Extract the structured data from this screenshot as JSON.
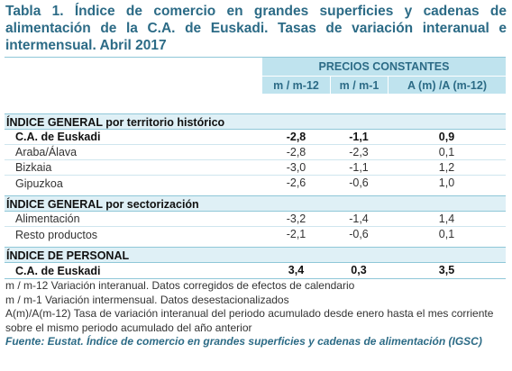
{
  "title": "Tabla 1. Índice de comercio en grandes superficies y cadenas de alimentación de la C.A. de Euskadi. Tasas de variación interanual e intermensual. Abril 2017",
  "header": {
    "group": "PRECIOS CONSTANTES",
    "columns": [
      "m / m-12",
      "m / m-1",
      "A (m) /A (m-12)"
    ]
  },
  "sections": [
    {
      "title": "ÍNDICE GENERAL por territorio histórico",
      "rows": [
        {
          "label": "C.A. de Euskadi",
          "values": [
            "-2,8",
            "-1,1",
            "0,9"
          ],
          "bold": true
        },
        {
          "label": "Araba/Álava",
          "values": [
            "-2,8",
            "-2,3",
            "0,1"
          ],
          "bold": false
        },
        {
          "label": "Bizkaia",
          "values": [
            "-3,0",
            "-1,1",
            "1,2"
          ],
          "bold": false
        },
        {
          "label": "Gipuzkoa",
          "values": [
            "-2,6",
            "-0,6",
            "1,0"
          ],
          "bold": false
        }
      ]
    },
    {
      "title": "ÍNDICE GENERAL por sectorización",
      "rows": [
        {
          "label": "Alimentación",
          "values": [
            "-3,2",
            "-1,4",
            "1,4"
          ],
          "bold": false
        },
        {
          "label": "Resto productos",
          "values": [
            "-2,1",
            "-0,6",
            "0,1"
          ],
          "bold": false
        }
      ]
    },
    {
      "title": "ÍNDICE DE PERSONAL",
      "rows": [
        {
          "label": "C.A. de Euskadi",
          "values": [
            "3,4",
            "0,3",
            "3,5"
          ],
          "bold": true
        }
      ]
    }
  ],
  "notes": [
    "m / m-12 Variación interanual. Datos corregidos de efectos de calendario",
    "m / m-1 Variación intermensual. Datos desestacionalizados",
    "A(m)/A(m-12) Tasa de variación interanual del periodo acumulado desde enero hasta el mes corriente sobre el mismo periodo acumulado del año anterior"
  ],
  "source": "Fuente: Eustat. Índice de comercio en grandes superficies y cadenas de alimentación (IGSC)",
  "colors": {
    "title": "#2c6b86",
    "header_bg": "#bfe3ee",
    "section_bg": "#dff0f6",
    "border": "#8fc7d8"
  }
}
